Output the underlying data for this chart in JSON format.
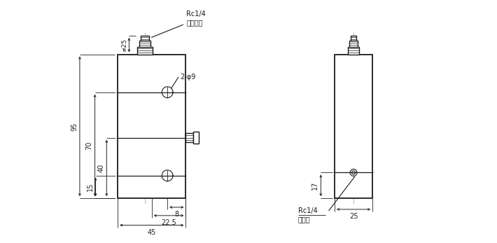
{
  "bg_color": "#ffffff",
  "line_color": "#1a1a1a",
  "dim_color": "#222222",
  "center_line_color": "#aaaaaa",
  "figsize": [
    7.1,
    3.47
  ],
  "dpi": 100,
  "annotations": {
    "rc14_top_label": "Rc1/4",
    "rc14_top_sublabel": "空气入口",
    "phi9_label": "2-φ9",
    "rc14_side_label": "Rc1/4",
    "rc14_side_sublabel": "进油口",
    "dim_95": "95",
    "dim_70": "70",
    "dim_40": "40",
    "dim_15": "15",
    "dim_25": "≠25",
    "dim_8": "8",
    "dim_22_5": "22.5",
    "dim_45": "45",
    "dim_17": "17",
    "dim_25_side": "25"
  }
}
